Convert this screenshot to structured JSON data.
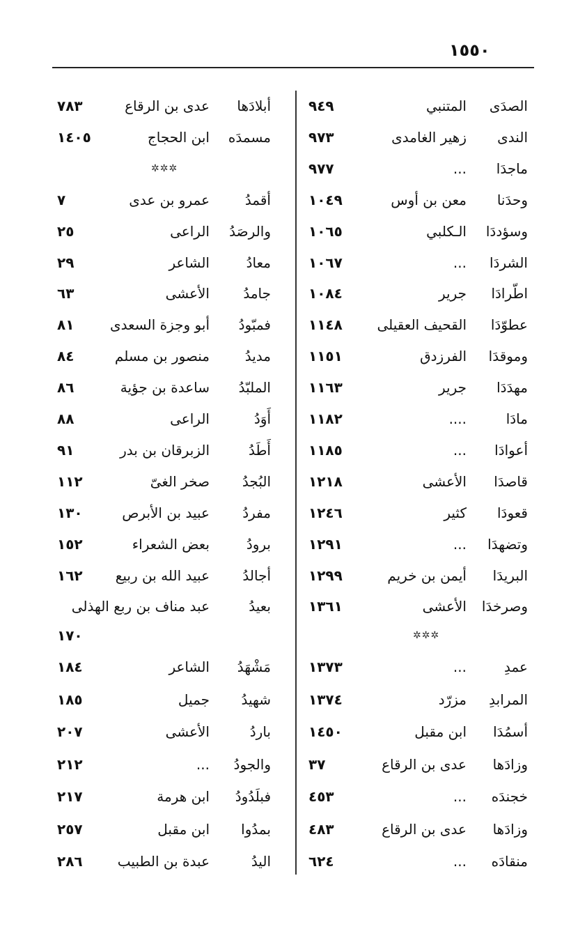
{
  "page_number": "١٥٥٠",
  "right_column": [
    {
      "word": "الصدَى",
      "poet": "المتنبي",
      "page": "٩٤٩"
    },
    {
      "word": "الندى",
      "poet": "زهير الغامدى",
      "page": "٩٧٣"
    },
    {
      "word": "ماجدَا",
      "poet": "...",
      "page": "٩٧٧"
    },
    {
      "word": "وحدَنا",
      "poet": "معن بن أوس",
      "page": "١٠٤٩"
    },
    {
      "word": "وسؤددَا",
      "poet": "الـكلبي",
      "page": "١٠٦٥"
    },
    {
      "word": "الشردَا",
      "poet": "...",
      "page": "١٠٦٧"
    },
    {
      "word": "اطّرادَا",
      "poet": "جرير",
      "page": "١٠٨٤"
    },
    {
      "word": "عطوّدَا",
      "poet": "القحيف العقيلى",
      "page": "١١٤٨"
    },
    {
      "word": "وموقدَا",
      "poet": "الفرزدق",
      "page": "١١٥١"
    },
    {
      "word": "مهدَدَا",
      "poet": "جرير",
      "page": "١١٦٣"
    },
    {
      "word": "مادَا",
      "poet": "....",
      "page": "١١٨٢"
    },
    {
      "word": "أعوادَا",
      "poet": "...",
      "page": "١١٨٥"
    },
    {
      "word": "قاصدَا",
      "poet": "الأعشى",
      "page": "١٢١٨"
    },
    {
      "word": "قعودَا",
      "poet": "كثير",
      "page": "١٢٤٦"
    },
    {
      "word": "وتضهدَا",
      "poet": "...",
      "page": "١٢٩١"
    },
    {
      "word": "البريدَا",
      "poet": "أيمن بن خريم",
      "page": "١٢٩٩"
    },
    {
      "word": "وصرخدَا",
      "poet": "الأعشى",
      "page": "١٣٦١"
    },
    {
      "separator": "✲✲✲"
    },
    {
      "word": "عمدِ",
      "poet": "...",
      "page": "١٣٧٣"
    },
    {
      "word": "المرابدِ",
      "poet": "مزرّد",
      "page": "١٣٧٤"
    },
    {
      "word": "أسمُدَا",
      "poet": "ابن مقبل",
      "page": "١٤٥٠"
    },
    {
      "word": "وزادَها",
      "poet": "عدى بن الرقاع",
      "page": "٣٧"
    },
    {
      "word": "خجندَه",
      "poet": "...",
      "page": "٤٥٣"
    },
    {
      "word": "وزادَها",
      "poet": "عدى بن الرقاع",
      "page": "٤٨٣"
    },
    {
      "word": "منقادَه",
      "poet": "...",
      "page": "٦٢٤"
    }
  ],
  "left_column": [
    {
      "word": "أبلادَها",
      "poet": "عدى بن الرقاع",
      "page": "٧٨٣"
    },
    {
      "word": "مسمدَه",
      "poet": "ابن الحجاج",
      "page": "١٤٠٥"
    },
    {
      "separator": "✲✲✲"
    },
    {
      "word": "أقمدُ",
      "poet": "عمرو بن عدى",
      "page": "٧"
    },
    {
      "word": "والرصَدُ",
      "poet": "الراعى",
      "page": "٢٥"
    },
    {
      "word": "معادُ",
      "poet": "الشاعر",
      "page": "٢٩"
    },
    {
      "word": "جامدُ",
      "poet": "الأعشى",
      "page": "٦٣"
    },
    {
      "word": "فمبّودُ",
      "poet": "أبو وجزة السعدى",
      "page": "٨١"
    },
    {
      "word": "مديدُ",
      "poet": "منصور بن مسلم",
      "page": "٨٤"
    },
    {
      "word": "الملبّدُ",
      "poet": "ساعدة بن جؤية",
      "page": "٨٦"
    },
    {
      "word": "أَوَدُ",
      "poet": "الراعى",
      "page": "٨٨"
    },
    {
      "word": "أَطَدُ",
      "poet": "الزبرقان بن بدر",
      "page": "٩١"
    },
    {
      "word": "البُجدُ",
      "poet": "صخر الغىّ",
      "page": "١١٢"
    },
    {
      "word": "مفردُ",
      "poet": "عبيد بن الأبرص",
      "page": "١٣٠"
    },
    {
      "word": "برودُ",
      "poet": "بعض الشعراء",
      "page": "١٥٢"
    },
    {
      "word": "أجالدُ",
      "poet": "عبيد الله بن ربيع",
      "page": "١٦٢"
    },
    {
      "word": "بعيدُ",
      "poet": "عبد مناف بن ربع الهذلى",
      "page": ""
    },
    {
      "word": "",
      "poet": "",
      "page": "١٧٠"
    },
    {
      "word": "مَشْهَدُ",
      "poet": "الشاعر",
      "page": "١٨٤"
    },
    {
      "word": "شهيدُ",
      "poet": "جميل",
      "page": "١٨٥"
    },
    {
      "word": "باردُ",
      "poet": "الأعشى",
      "page": "٢٠٧"
    },
    {
      "word": "والجودُ",
      "poet": "...",
      "page": "٢١٢"
    },
    {
      "word": "فبلَدُودُ",
      "poet": "ابن هرمة",
      "page": "٢١٧"
    },
    {
      "word": "بمدُوا",
      "poet": "ابن مقبل",
      "page": "٢٥٧"
    },
    {
      "word": "اليدُ",
      "poet": "عبدة بن الطبيب",
      "page": "٢٨٦"
    }
  ]
}
